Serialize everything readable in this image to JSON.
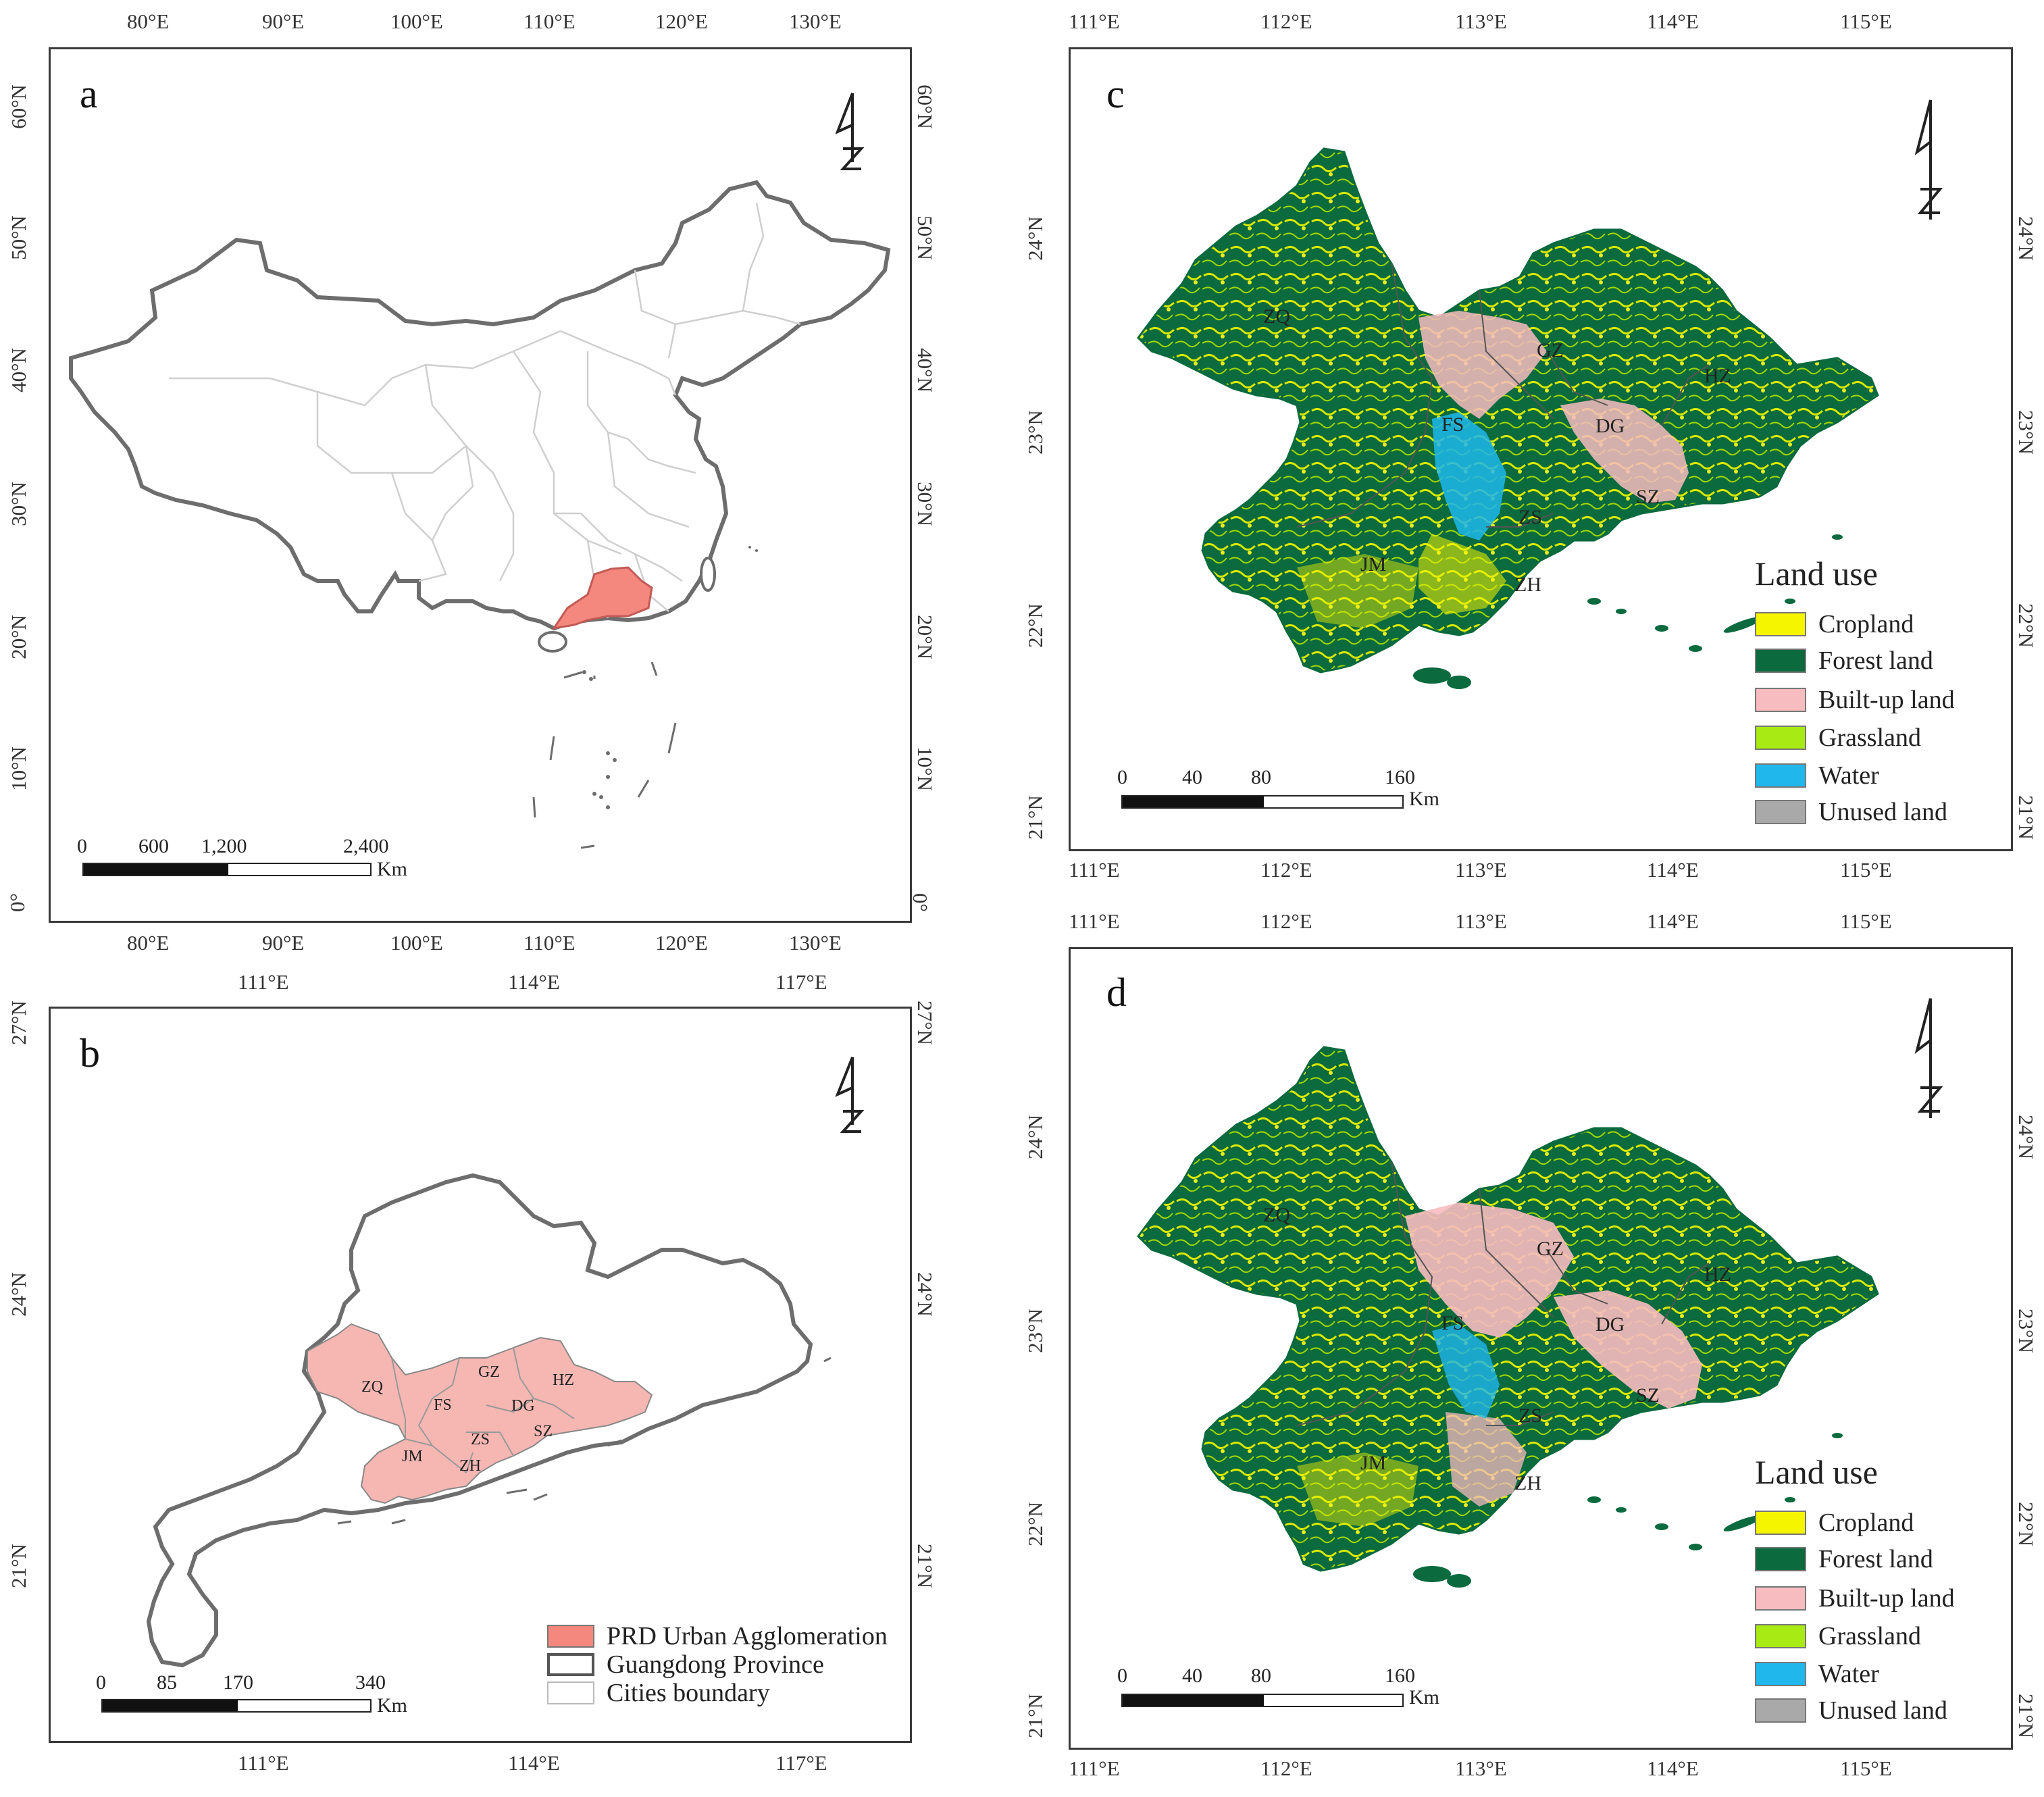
{
  "panels": {
    "a": {
      "label": "a",
      "top_ticks": [
        "80°E",
        "90°E",
        "100°E",
        "110°E",
        "120°E",
        "130°E"
      ],
      "bottom_ticks": [
        "80°E",
        "90°E",
        "100°E",
        "110°E",
        "120°E",
        "130°E"
      ],
      "left_ticks": [
        "60°N",
        "50°N",
        "40°N",
        "30°N",
        "20°N",
        "10°N",
        "0°"
      ],
      "right_ticks": [
        "60°N",
        "50°N",
        "40°N",
        "30°N",
        "20°N",
        "10°N",
        "0°"
      ],
      "scale": {
        "labels": [
          "0",
          "600",
          "1,200",
          "2,400"
        ],
        "unit": "Km"
      }
    },
    "b": {
      "label": "b",
      "top_ticks": [
        "111°E",
        "114°E",
        "117°E"
      ],
      "bottom_ticks": [
        "111°E",
        "114°E",
        "117°E"
      ],
      "left_ticks": [
        "27°N",
        "24°N",
        "21°N"
      ],
      "right_ticks": [
        "27°N",
        "24°N",
        "21°N"
      ],
      "cities": [
        "ZQ",
        "GZ",
        "HZ",
        "FS",
        "DG",
        "ZS",
        "SZ",
        "JM",
        "ZH"
      ],
      "scale": {
        "labels": [
          "0",
          "85",
          "170",
          "340"
        ],
        "unit": "Km"
      },
      "legend": [
        {
          "label": "PRD Urban Agglomeration",
          "color": "#f4877e"
        },
        {
          "label": "Guangdong Province",
          "color": "#ffffff"
        },
        {
          "label": "Cities boundary",
          "color": "#ffffff"
        }
      ]
    },
    "c": {
      "label": "c",
      "top_ticks": [
        "111°E",
        "112°E",
        "113°E",
        "114°E",
        "115°E"
      ],
      "bottom_ticks": [
        "111°E",
        "112°E",
        "113°E",
        "114°E",
        "115°E"
      ],
      "left_ticks": [
        "24°N",
        "23°N",
        "22°N",
        "21°N"
      ],
      "right_ticks": [
        "24°N",
        "23°N",
        "22°N",
        "21°N"
      ],
      "cities": [
        "ZQ",
        "GZ",
        "HZ",
        "FS",
        "DG",
        "SZ",
        "ZS",
        "JM",
        "ZH"
      ],
      "scale": {
        "labels": [
          "0",
          "40",
          "80",
          "160"
        ],
        "unit": "Km"
      }
    },
    "d": {
      "label": "d",
      "top_ticks": [
        "111°E",
        "112°E",
        "113°E",
        "114°E",
        "115°E"
      ],
      "bottom_ticks": [
        "111°E",
        "112°E",
        "113°E",
        "114°E",
        "115°E"
      ],
      "left_ticks": [
        "24°N",
        "23°N",
        "22°N",
        "21°N"
      ],
      "right_ticks": [
        "24°N",
        "23°N",
        "22°N",
        "21°N"
      ],
      "cities": [
        "ZQ",
        "GZ",
        "HZ",
        "FS",
        "DG",
        "SZ",
        "ZS",
        "JM",
        "ZH"
      ],
      "scale": {
        "labels": [
          "0",
          "40",
          "80",
          "160"
        ],
        "unit": "Km"
      }
    }
  },
  "land_use_legend": {
    "title": "Land use",
    "items": [
      {
        "label": "Cropland",
        "color": "#f5f500"
      },
      {
        "label": "Forest land",
        "color": "#0b6a3e"
      },
      {
        "label": "Built-up land",
        "color": "#f7bcc0"
      },
      {
        "label": "Grassland",
        "color": "#a8ea14"
      },
      {
        "label": "Water",
        "color": "#1fb7ec"
      },
      {
        "label": "Unused land",
        "color": "#a9a9a9"
      }
    ]
  },
  "colors": {
    "frame": "#3a3a3a",
    "boundary": "#6d6d6d",
    "province_fill": "#ececec",
    "prd": "#f4877e",
    "prd_light": "#f6b7b3"
  }
}
